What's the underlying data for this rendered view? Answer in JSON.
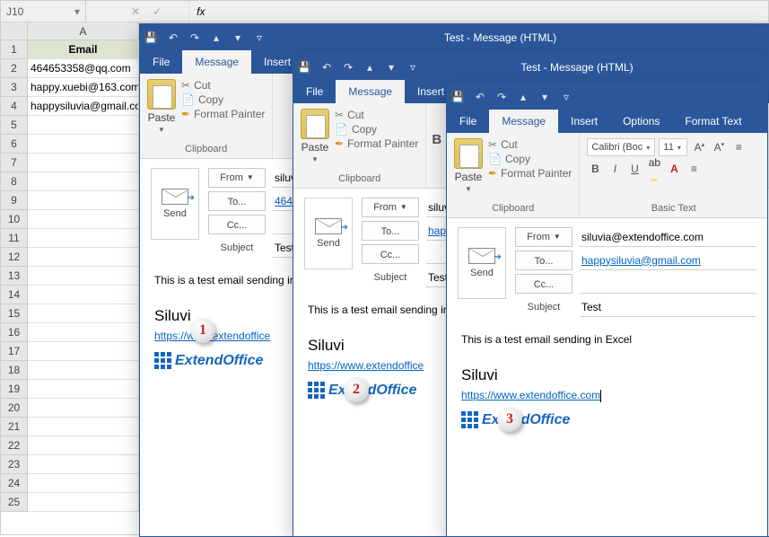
{
  "excel": {
    "name_box": "J10",
    "col_headers": [
      "A"
    ],
    "header_cell": "Email",
    "rows": [
      "464653358@qq.com",
      "happy.xuebi@163.com",
      "happysiluvia@gmail.com"
    ],
    "row_count": 25
  },
  "outlook": {
    "title": "Test  -  Message (HTML)",
    "tabs": {
      "file": "File",
      "message": "Message",
      "insert": "Insert",
      "options": "Options",
      "format": "Format Text"
    },
    "clipboard": {
      "cut": "Cut",
      "copy": "Copy",
      "fp": "Format Painter",
      "paste": "Paste",
      "label": "Clipboard"
    },
    "basic_text": {
      "font": "Calibri (Boc",
      "size": "11",
      "label": "Basic Text"
    },
    "send": "Send",
    "from_label": "From",
    "to_label": "To...",
    "cc_label": "Cc...",
    "subject_label": "Subject",
    "subject_value": "Test",
    "from_addr_short": "siluvi",
    "from_addr": "siluvia@extendoffice.com",
    "win1": {
      "to": "46465"
    },
    "win2": {
      "to": "happy"
    },
    "win3": {
      "to": "happysiluvia@gmail.com"
    },
    "body_text_short": "This is a test email sending in",
    "body_text": "This is a test email sending in Excel",
    "sig_name_short": "Siluvi",
    "sig_link_short": "https://www.extendoffice",
    "sig_link": "https://www.extendoffice.com",
    "ext_brand": "ExtendOffice"
  },
  "badges": {
    "b1": "1",
    "b2": "2",
    "b3": "3"
  },
  "colors": {
    "blue": "#2b579a",
    "link": "#0563c1",
    "excel_header_bg": "#dbe5d0",
    "badge_red": "#d02020"
  }
}
